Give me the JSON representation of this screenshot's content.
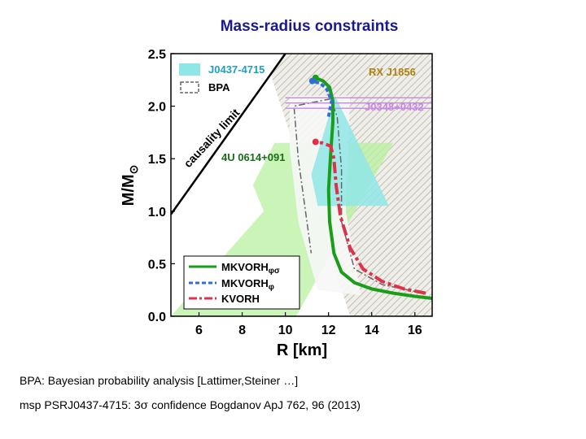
{
  "slide": {
    "title": "Mass-radius constraints",
    "caption1": "BPA: Bayesian probability analysis [Lattimer,Steiner …]",
    "caption2_prefix": "msp PSRJ0437-4715: 3",
    "caption2_sigma": "σ",
    "caption2_suffix": " confidence Bogdanov ApJ 762, 96 (2013)"
  },
  "chart_data": {
    "type": "line",
    "xlabel": "R [km]",
    "ylabel": "M/M",
    "ylabel_symbol": "⊙",
    "xlim": [
      4.7,
      16.8
    ],
    "ylim": [
      0.0,
      2.5
    ],
    "xticks": [
      6,
      8,
      10,
      12,
      14,
      16
    ],
    "yticks": [
      0.0,
      0.5,
      1.0,
      1.5,
      2.0,
      2.5
    ],
    "xtick_labels": [
      "6",
      "8",
      "10",
      "12",
      "14",
      "16"
    ],
    "ytick_labels": [
      "0.0",
      "0.5",
      "1.0",
      "1.5",
      "2.0",
      "2.5"
    ],
    "legend_position": "lower-left",
    "annotations": {
      "causality": "causality limit",
      "rxj": "RX J1856",
      "j0348": "J0348+0432",
      "u4": "4U 0614+091"
    },
    "constraint_legend": [
      {
        "name": "J0437-4715",
        "color": "#7fe8e8"
      },
      {
        "name": "BPA",
        "color": "#888888"
      }
    ],
    "series": [
      {
        "name": "MKVORH",
        "subscript": "φσ",
        "color": "#1a9e1a",
        "points": [
          [
            16.8,
            0.17
          ],
          [
            16,
            0.19
          ],
          [
            15,
            0.22
          ],
          [
            14,
            0.26
          ],
          [
            13.2,
            0.32
          ],
          [
            12.6,
            0.42
          ],
          [
            12.25,
            0.6
          ],
          [
            12.05,
            0.9
          ],
          [
            12.0,
            1.2
          ],
          [
            12.1,
            1.55
          ],
          [
            12.2,
            1.85
          ],
          [
            12.2,
            2.05
          ],
          [
            12.05,
            2.18
          ],
          [
            11.75,
            2.24
          ],
          [
            11.4,
            2.27
          ]
        ]
      },
      {
        "name": "MKVORH",
        "subscript": "φ",
        "color": "#2e6fd6",
        "points": [
          [
            12.0,
            1.9
          ],
          [
            12.15,
            2.05
          ],
          [
            11.9,
            2.17
          ],
          [
            11.6,
            2.22
          ],
          [
            11.25,
            2.24
          ]
        ]
      },
      {
        "name": "KVORH",
        "subscript": "",
        "color": "#e0304a",
        "points": [
          [
            16.5,
            0.22
          ],
          [
            15.5,
            0.26
          ],
          [
            14.5,
            0.33
          ],
          [
            13.6,
            0.45
          ],
          [
            13.0,
            0.65
          ],
          [
            12.55,
            0.95
          ],
          [
            12.35,
            1.25
          ],
          [
            12.25,
            1.5
          ],
          [
            12.1,
            1.62
          ],
          [
            11.7,
            1.65
          ],
          [
            11.4,
            1.66
          ]
        ]
      }
    ]
  }
}
